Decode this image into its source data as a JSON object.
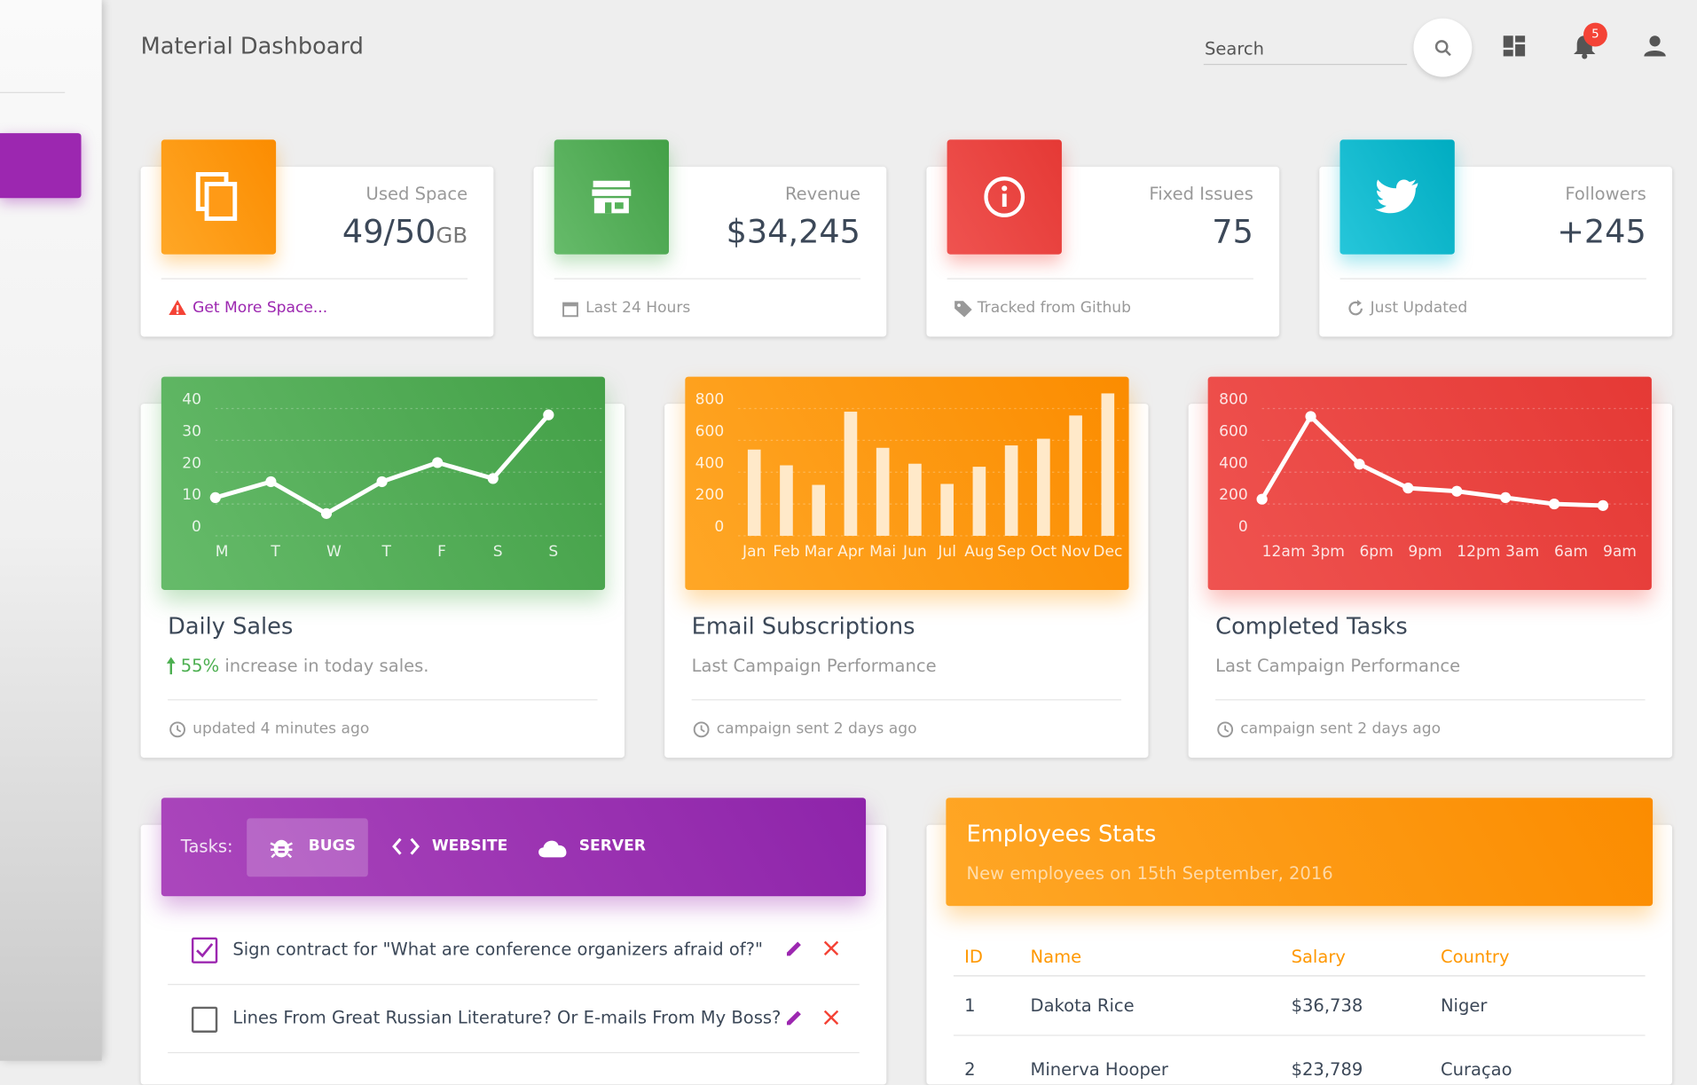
{
  "header": {
    "title": "Material Dashboard",
    "search_placeholder": "Search",
    "notifications": "5"
  },
  "stats": [
    {
      "label": "Used Space",
      "value": "49/50",
      "unit": "GB",
      "footer": "Get More Space..."
    },
    {
      "label": "Revenue",
      "value": "$34,245",
      "footer": "Last 24 Hours"
    },
    {
      "label": "Fixed Issues",
      "value": "75",
      "footer": "Tracked from Github"
    },
    {
      "label": "Followers",
      "value": "+245",
      "footer": "Just Updated"
    }
  ],
  "charts": [
    {
      "type": "line",
      "title": "Daily Sales",
      "highlight": "55%",
      "subtitle": "increase in today sales.",
      "footer": "updated 4 minutes ago",
      "categories": [
        "M",
        "T",
        "W",
        "T",
        "F",
        "S",
        "S"
      ],
      "values": [
        12,
        17,
        7,
        17,
        23,
        18,
        38
      ],
      "ylim": [
        0,
        50
      ],
      "yticks": [
        0,
        10,
        20,
        30,
        40
      ],
      "grid": true,
      "color": "#ffffff"
    },
    {
      "type": "bar",
      "title": "Email Subscriptions",
      "subtitle": "Last Campaign Performance",
      "footer": "campaign sent 2 days ago",
      "categories": [
        "Jan",
        "Feb",
        "Mar",
        "Apr",
        "Mai",
        "Jun",
        "Jul",
        "Aug",
        "Sep",
        "Oct",
        "Nov",
        "Dec"
      ],
      "values": [
        542,
        443,
        320,
        780,
        553,
        453,
        326,
        434,
        568,
        610,
        756,
        895
      ],
      "ylim": [
        0,
        1000
      ],
      "yticks": [
        0,
        200,
        400,
        600,
        800
      ],
      "grid": true,
      "color": "#ffe9c9"
    },
    {
      "type": "line",
      "title": "Completed Tasks",
      "subtitle": "Last Campaign Performance",
      "footer": "campaign sent 2 days ago",
      "categories": [
        "12am",
        "3pm",
        "6pm",
        "9pm",
        "12pm",
        "3am",
        "6am",
        "9am"
      ],
      "values": [
        230,
        750,
        450,
        300,
        280,
        240,
        200,
        190
      ],
      "ylim": [
        0,
        1000
      ],
      "yticks": [
        0,
        200,
        400,
        600,
        800
      ],
      "grid": true,
      "color": "#ffffff"
    }
  ],
  "tasks": {
    "label": "Tasks:",
    "tabs": [
      "BUGS",
      "WEBSITE",
      "SERVER"
    ],
    "items": [
      {
        "text": "Sign contract for \"What are conference organizers afraid of?\"",
        "checked": true
      },
      {
        "text": "Lines From Great Russian Literature? Or E-mails From My Boss?",
        "checked": false
      }
    ]
  },
  "employees": {
    "title": "Employees Stats",
    "subtitle": "New employees on 15th September, 2016",
    "columns": [
      "ID",
      "Name",
      "Salary",
      "Country"
    ],
    "rows": [
      [
        "1",
        "Dakota Rice",
        "$36,738",
        "Niger"
      ],
      [
        "2",
        "Minerva Hooper",
        "$23,789",
        "Curaçao"
      ]
    ]
  }
}
